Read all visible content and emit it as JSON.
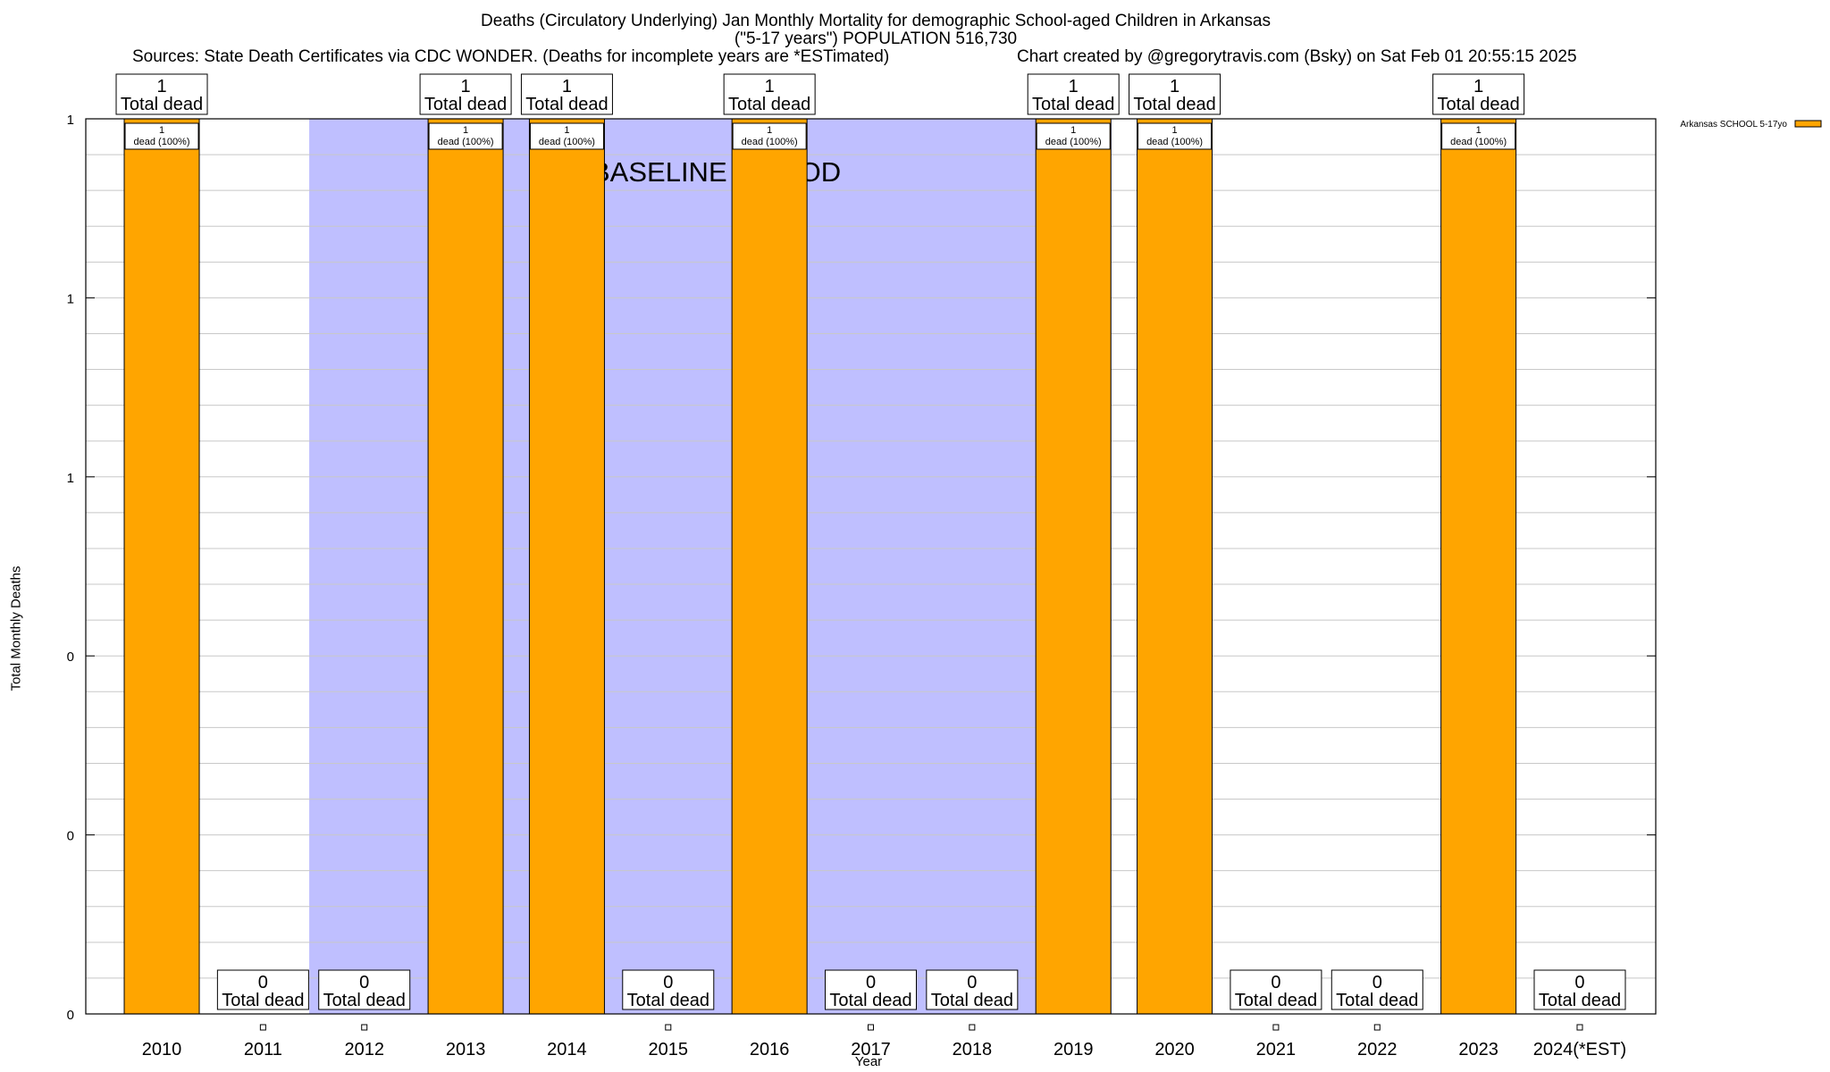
{
  "header": {
    "title_line1": "Deaths (Circulatory Underlying) Jan Monthly Mortality for demographic School-aged Children in Arkansas",
    "title_line2": "(\"5-17 years\") POPULATION 516,730",
    "sources": "Sources: State Death Certificates via CDC WONDER. (Deaths for incomplete years are *ESTimated)",
    "credit": "Chart created by @gregorytravis.com (Bsky) on Sat Feb 01 20:55:15 2025"
  },
  "chart_data": {
    "type": "bar",
    "xlabel": "Year",
    "ylabel": "Total Monthly Deaths",
    "ylim": [
      0,
      1
    ],
    "y_tick_labels": [
      "0",
      "0",
      "0",
      "1",
      "1",
      "1"
    ],
    "categories": [
      "2010",
      "2011",
      "2012",
      "2013",
      "2014",
      "2015",
      "2016",
      "2017",
      "2018",
      "2019",
      "2020",
      "2021",
      "2022",
      "2023",
      "2024(*EST)"
    ],
    "series": [
      {
        "name": "Arkansas SCHOOL 5-17yo",
        "color": "#ffa500",
        "values": [
          1,
          0,
          0,
          1,
          1,
          0,
          1,
          0,
          0,
          1,
          1,
          0,
          0,
          1,
          0
        ]
      }
    ],
    "total_label_text": "Total dead",
    "bar_label_text": "dead (100%)",
    "baseline_period": {
      "label": "BASELINE PERIOD",
      "color": "#bfbfff",
      "from_year": "2012",
      "to_year": "2019"
    },
    "grid": true,
    "legend_position": "top-right"
  }
}
